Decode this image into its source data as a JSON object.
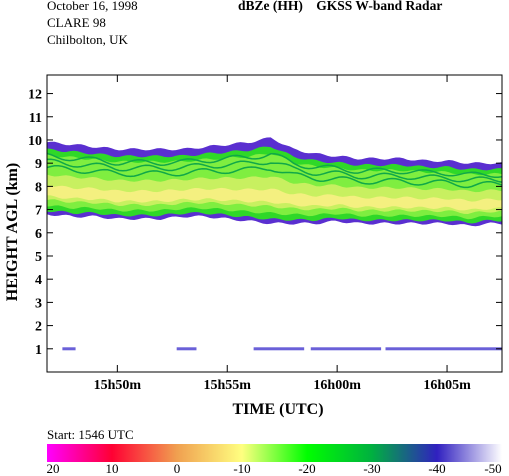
{
  "header": {
    "date": "October 16, 1998",
    "campaign": "CLARE 98",
    "location": "Chilbolton, UK",
    "quantity": "dBZe (HH)",
    "instrument": "GKSS  W-band Radar"
  },
  "chart_data": {
    "type": "heatmap",
    "xlabel": "TIME (UTC)",
    "ylabel": "HEIGHT AGL (km)",
    "x_ticks": [
      {
        "label": "15h50m",
        "minutes": 50
      },
      {
        "label": "15h55m",
        "minutes": 55
      },
      {
        "label": "16h00m",
        "minutes": 60
      },
      {
        "label": "16h05m",
        "minutes": 65
      }
    ],
    "xlim_minutes_after_1500": [
      46.8,
      67.5
    ],
    "y_ticks": [
      1,
      2,
      3,
      4,
      5,
      6,
      7,
      8,
      9,
      10,
      11,
      12
    ],
    "ylim": [
      0,
      12.8
    ],
    "cloud_layer": {
      "times_minutes": [
        46.8,
        48,
        49,
        50,
        51,
        52,
        53,
        54,
        55,
        56,
        57,
        58,
        59,
        60,
        61,
        62,
        63,
        64,
        65,
        66,
        67,
        67.5
      ],
      "top_km": [
        9.9,
        9.8,
        9.7,
        9.6,
        9.6,
        9.6,
        9.6,
        9.7,
        9.8,
        9.9,
        10.1,
        9.6,
        9.4,
        9.3,
        9.2,
        9.2,
        9.2,
        9.1,
        9.1,
        9.0,
        9.0,
        9.0
      ],
      "base_km": [
        6.8,
        6.7,
        6.7,
        6.6,
        6.6,
        6.6,
        6.7,
        6.7,
        6.6,
        6.5,
        6.4,
        6.4,
        6.4,
        6.5,
        6.4,
        6.4,
        6.4,
        6.4,
        6.4,
        6.3,
        6.4,
        6.4
      ],
      "core_dbze": -18
    },
    "low_echo_km": 1.0,
    "colorbar": {
      "label": "Start: 1546 UTC",
      "ticks": [
        "20",
        "10",
        "0",
        "-10",
        "-20",
        "-30",
        "-40",
        "-50"
      ],
      "range_dbze": [
        20,
        -50
      ],
      "colors": [
        "#ff00ff",
        "#ff0033",
        "#f0a050",
        "#ffff80",
        "#00ff00",
        "#00b040",
        "#3020c0",
        "#ffffff"
      ]
    }
  }
}
